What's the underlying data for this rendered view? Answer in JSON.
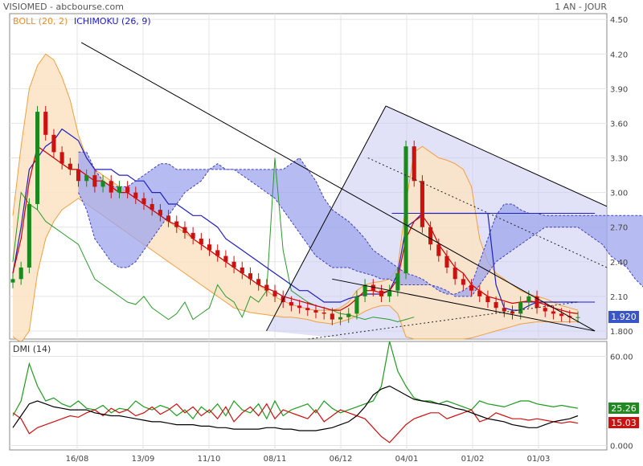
{
  "header": {
    "title": "VISIOMED - abcbourse.com",
    "period": "1 AN - JOUR",
    "legend_boll": "BOLL (20, 2)",
    "legend_ichimoku": "ICHIMOKU (26, 9)"
  },
  "colors": {
    "boll": "#f0a040",
    "boll_fill": "#fbe3c4",
    "ichimoku": "#2020c0",
    "cloud": "#9ea5ec",
    "ma": "#cc0000",
    "chikou": "#2a9a2a",
    "up": "#1a8a1a",
    "down": "#cc1111",
    "trend": "#000000",
    "dmi_plus": "#1f9a1f",
    "dmi_minus": "#cc1111",
    "adx": "#000000",
    "price_tag": "#3a55c8"
  },
  "chart_data": [
    {
      "type": "line",
      "name_label": "price",
      "y_ticks": [
        "4.50",
        "4.20",
        "3.90",
        "3.60",
        "3.30",
        "3.00",
        "2.70",
        "2.40",
        "2.10",
        "1.800"
      ],
      "ylim": [
        1.73,
        4.55
      ],
      "x_tick_labels": [
        "16/08",
        "13/09",
        "11/10",
        "08/11",
        "06/12",
        "04/01",
        "01/02",
        "01/03"
      ],
      "last_price": "1.920",
      "series": [
        {
          "key": "close",
          "values": [
            2.25,
            2.35,
            2.9,
            3.7,
            3.5,
            3.35,
            3.25,
            3.2,
            3.1,
            3.15,
            3.05,
            3.1,
            3.0,
            3.05,
            3.0,
            2.95,
            2.9,
            2.85,
            2.8,
            2.75,
            2.7,
            2.65,
            2.6,
            2.55,
            2.5,
            2.45,
            2.4,
            2.35,
            2.3,
            2.25,
            2.2,
            2.15,
            2.1,
            2.05,
            2.02,
            2.0,
            1.98,
            1.96,
            1.95,
            1.9,
            1.92,
            1.95,
            2.1,
            2.2,
            2.15,
            2.1,
            2.15,
            2.3,
            3.4,
            3.1,
            2.7,
            2.55,
            2.45,
            2.35,
            2.25,
            2.2,
            2.15,
            2.1,
            2.05,
            2.0,
            1.97,
            1.95,
            2.05,
            2.1,
            2.0,
            1.97,
            1.95,
            1.93,
            1.92,
            1.92
          ]
        },
        {
          "key": "ma",
          "values": [
            2.3,
            2.5,
            2.85,
            3.15,
            3.3,
            3.32,
            3.3,
            3.28,
            3.25,
            3.2,
            3.15,
            3.12,
            3.1,
            3.07,
            3.03,
            2.99,
            2.95,
            2.91,
            2.86,
            2.81,
            2.76,
            2.71,
            2.66,
            2.61,
            2.56,
            2.51,
            2.46,
            2.41,
            2.36,
            2.31,
            2.26,
            2.21,
            2.16,
            2.11,
            2.07,
            2.04,
            2.02,
            2.0,
            1.99,
            1.98,
            1.98,
            2.0,
            2.05,
            2.1,
            2.12,
            2.13,
            2.14,
            2.16,
            2.35,
            2.8,
            2.95,
            2.85,
            2.7,
            2.55,
            2.4,
            2.3,
            2.22,
            2.16,
            2.1,
            2.06,
            2.03,
            2.0,
            2.02,
            2.05,
            2.06,
            2.04,
            2.0,
            1.97,
            1.94,
            1.93
          ]
        },
        {
          "key": "boll_upper",
          "values": [
            2.8,
            3.4,
            3.9,
            4.1,
            4.2,
            4.15,
            4.0,
            3.8,
            3.5,
            3.3,
            3.2,
            3.15,
            3.1,
            3.05,
            3.0,
            2.95,
            2.9,
            2.85,
            2.8,
            2.75,
            2.7,
            2.65,
            2.6,
            2.55,
            2.5,
            2.45,
            2.4,
            2.35,
            2.3,
            2.25,
            2.2,
            2.15,
            2.1,
            2.06,
            2.03,
            2.01,
            1.99,
            1.98,
            1.98,
            1.98,
            2.0,
            2.05,
            2.15,
            2.2,
            2.22,
            2.23,
            2.25,
            2.35,
            2.9,
            3.35,
            3.4,
            3.35,
            3.3,
            3.28,
            3.25,
            3.2,
            3.05,
            2.6,
            2.4,
            2.3,
            2.25,
            2.2,
            2.15,
            2.12,
            2.1,
            2.08,
            2.05,
            2.02,
            2.0,
            1.98
          ]
        },
        {
          "key": "boll_lower",
          "values": [
            1.75,
            1.7,
            1.8,
            2.3,
            2.6,
            2.75,
            2.85,
            2.9,
            2.95,
            2.9,
            2.85,
            2.8,
            2.75,
            2.7,
            2.65,
            2.6,
            2.55,
            2.5,
            2.45,
            2.4,
            2.35,
            2.3,
            2.25,
            2.2,
            2.15,
            2.1,
            2.05,
            2.0,
            1.98,
            1.96,
            1.95,
            1.94,
            1.93,
            1.92,
            1.92,
            1.91,
            1.9,
            1.88,
            1.87,
            1.86,
            1.88,
            1.9,
            1.93,
            1.97,
            2.0,
            2.02,
            2.02,
            1.95,
            1.75,
            1.73,
            1.73,
            1.73,
            1.73,
            1.73,
            1.73,
            1.73,
            1.74,
            1.76,
            1.78,
            1.8,
            1.82,
            1.84,
            1.86,
            1.87,
            1.88,
            1.88,
            1.88,
            1.88,
            1.88,
            1.88
          ]
        },
        {
          "key": "tenkan",
          "values": [
            2.3,
            2.6,
            3.1,
            3.4,
            3.35,
            3.3,
            3.25,
            3.2,
            3.2,
            3.15,
            3.1,
            3.1,
            3.05,
            3.0,
            3.0,
            2.95,
            2.9,
            2.85,
            2.8,
            2.75,
            2.72,
            2.68,
            2.6,
            2.55,
            2.5,
            2.45,
            2.4,
            2.35,
            2.3,
            2.25,
            2.2,
            2.17,
            2.14,
            2.1,
            2.08,
            2.06,
            2.04,
            2.02,
            2.0,
            1.98,
            1.98,
            2.02,
            2.08,
            2.15,
            2.15,
            2.13,
            2.15,
            2.25,
            2.6,
            2.75,
            2.8,
            2.7,
            2.55,
            2.45,
            2.35,
            2.3,
            2.2,
            2.15,
            2.1,
            2.08,
            2.06,
            2.04,
            2.05,
            2.06,
            2.05,
            2.03,
            2.0,
            1.98,
            1.96,
            1.95
          ]
        },
        {
          "key": "kijun",
          "values": [
            2.3,
            2.7,
            3.2,
            3.3,
            3.4,
            3.45,
            3.55,
            3.5,
            3.45,
            3.3,
            3.2,
            3.2,
            3.2,
            3.15,
            3.15,
            3.1,
            3.1,
            3.0,
            3.0,
            2.9,
            2.9,
            2.85,
            2.8,
            2.8,
            2.75,
            2.7,
            2.6,
            2.55,
            2.5,
            2.45,
            2.4,
            2.35,
            2.3,
            2.25,
            2.2,
            2.15,
            2.15,
            2.1,
            2.05,
            2.05,
            2.05,
            2.08,
            2.1,
            2.12,
            2.12,
            2.12,
            2.15,
            2.3,
            2.7,
            2.75,
            2.82,
            2.82,
            2.82,
            2.82,
            2.82,
            2.82,
            2.82,
            2.82,
            2.82,
            2.2,
            2.0,
            1.98,
            1.98,
            2.02,
            2.05,
            2.05,
            2.05,
            2.05,
            2.05,
            2.05
          ]
        },
        {
          "key": "cloud_a",
          "values": [
            3.35,
            3.35,
            3.2,
            3.1,
            3.05,
            3.05,
            3.05,
            3.1,
            3.15,
            3.2,
            3.25,
            3.25,
            3.2,
            3.2,
            3.2,
            3.2,
            3.2,
            3.2,
            3.2,
            3.2,
            3.2,
            3.2,
            3.2,
            3.2,
            3.2,
            3.2,
            3.25,
            3.3,
            3.2,
            3.1,
            2.95,
            2.85,
            2.8,
            2.75,
            2.68,
            2.6,
            2.5,
            2.45,
            2.4,
            2.35,
            2.3,
            2.28,
            2.25,
            2.2,
            2.15,
            2.12,
            2.12,
            2.15,
            2.2,
            2.4,
            2.6,
            2.8,
            2.9,
            2.9,
            2.85,
            2.82,
            2.82,
            2.8,
            2.8,
            2.8,
            2.8,
            2.8,
            2.8,
            2.8,
            2.8,
            2.8,
            2.8,
            2.8,
            2.8,
            2.8
          ]
        },
        {
          "key": "cloud_b",
          "values": [
            3.0,
            2.85,
            2.6,
            2.5,
            2.4,
            2.35,
            2.35,
            2.4,
            2.5,
            2.6,
            2.7,
            2.8,
            2.9,
            3.0,
            3.05,
            3.1,
            3.2,
            3.25,
            3.2,
            3.2,
            3.15,
            3.1,
            3.05,
            3.0,
            2.95,
            2.85,
            2.75,
            2.65,
            2.55,
            2.45,
            2.4,
            2.35,
            2.35,
            2.35,
            2.32,
            2.3,
            2.28,
            2.25,
            2.25,
            2.2,
            2.2,
            2.2,
            2.2,
            2.2,
            2.18,
            2.15,
            2.1,
            2.1,
            2.1,
            2.2,
            2.3,
            2.4,
            2.45,
            2.5,
            2.55,
            2.6,
            2.65,
            2.7,
            2.7,
            2.7,
            2.7,
            2.7,
            2.65,
            2.6,
            2.55,
            2.45,
            2.4,
            2.35,
            2.25,
            2.18
          ]
        },
        {
          "key": "chikou",
          "values": [
            2.4,
            3.0,
            2.9,
            2.85,
            2.75,
            2.7,
            2.65,
            2.6,
            2.55,
            2.4,
            2.25,
            2.2,
            2.15,
            2.1,
            2.05,
            2.03,
            2.1,
            2.0,
            1.95,
            1.9,
            1.95,
            2.05,
            1.9,
            1.95,
            2.0,
            2.2,
            2.1,
            2.05,
            1.92,
            2.1,
            2.05,
            2.15,
            3.3,
            2.5,
            2.15,
            2.1,
            2.05,
            2.02,
            2.0,
            1.98,
            1.95,
            1.94,
            1.92,
            1.9,
            1.92,
            1.91,
            1.9,
            1.88,
            1.9,
            1.92
          ]
        }
      ],
      "trend_lines": [
        {
          "x": [
            0.12,
            0.98
          ],
          "y": [
            4.3,
            1.8
          ]
        },
        {
          "x": [
            0.43,
            0.63
          ],
          "y": [
            1.8,
            3.75
          ]
        },
        {
          "x": [
            0.63,
            1.0
          ],
          "y": [
            3.75,
            2.88
          ]
        },
        {
          "x": [
            0.54,
            0.98
          ],
          "y": [
            2.25,
            1.8
          ]
        }
      ],
      "dotted_channel": [
        {
          "x": [
            0.6,
            1.0
          ],
          "y": [
            3.3,
            2.35
          ]
        },
        {
          "x": [
            0.5,
            0.95
          ],
          "y": [
            1.73,
            2.05
          ]
        }
      ],
      "fan_shade": {
        "x": [
          0.43,
          0.63,
          1.0,
          1.0,
          0.72,
          0.57
        ],
        "y": [
          1.8,
          3.75,
          2.88,
          1.73,
          1.73,
          1.73
        ]
      },
      "horizontal_level": {
        "x": [
          0.86,
          0.98
        ],
        "y": [
          2.05,
          2.05
        ]
      },
      "horizontal_level_2": {
        "x": [
          0.64,
          0.98
        ],
        "y": [
          2.82,
          2.82
        ]
      }
    },
    {
      "type": "line",
      "title": "DMI (14)",
      "y_ticks": [
        "60.00",
        "0.000"
      ],
      "ylim": [
        -3,
        70
      ],
      "last_values": {
        "plus": "25.26",
        "minus": "15.03"
      },
      "series": [
        {
          "key": "dmi_plus",
          "values": [
            20,
            30,
            55,
            40,
            30,
            32,
            28,
            26,
            30,
            25,
            24,
            27,
            22,
            25,
            24,
            30,
            26,
            24,
            27,
            25,
            20,
            24,
            18,
            26,
            22,
            28,
            20,
            30,
            24,
            22,
            28,
            18,
            30,
            20,
            24,
            26,
            28,
            22,
            30,
            25,
            22,
            24,
            26,
            28,
            30,
            40,
            70,
            50,
            40,
            32,
            30,
            30,
            28,
            30,
            28,
            26,
            24,
            30,
            28,
            27,
            26,
            28,
            30,
            30,
            28,
            27,
            26,
            27,
            26,
            25
          ]
        },
        {
          "key": "dmi_minus",
          "values": [
            22,
            18,
            8,
            12,
            14,
            16,
            18,
            20,
            19,
            22,
            24,
            20,
            25,
            22,
            24,
            20,
            22,
            26,
            21,
            24,
            28,
            22,
            26,
            20,
            24,
            18,
            26,
            16,
            22,
            26,
            20,
            28,
            18,
            24,
            22,
            20,
            18,
            24,
            16,
            20,
            24,
            22,
            20,
            18,
            12,
            6,
            2,
            8,
            14,
            18,
            20,
            22,
            22,
            18,
            20,
            22,
            24,
            16,
            18,
            22,
            20,
            18,
            18,
            17,
            18,
            17,
            16,
            15,
            16,
            15
          ]
        },
        {
          "key": "adx",
          "values": [
            12,
            20,
            28,
            30,
            28,
            26,
            25,
            24,
            24,
            24,
            22,
            21,
            20,
            20,
            19,
            18,
            17,
            16,
            16,
            15,
            14,
            14,
            14,
            13,
            13,
            12,
            12,
            11,
            11,
            11,
            11,
            12,
            12,
            11,
            11,
            10,
            10,
            10,
            11,
            12,
            14,
            16,
            20,
            26,
            34,
            38,
            40,
            37,
            34,
            31,
            30,
            29,
            28,
            27,
            25,
            24,
            22,
            20,
            18,
            17,
            16,
            14,
            13,
            12,
            12,
            14,
            16,
            17,
            18,
            20
          ]
        }
      ]
    }
  ]
}
